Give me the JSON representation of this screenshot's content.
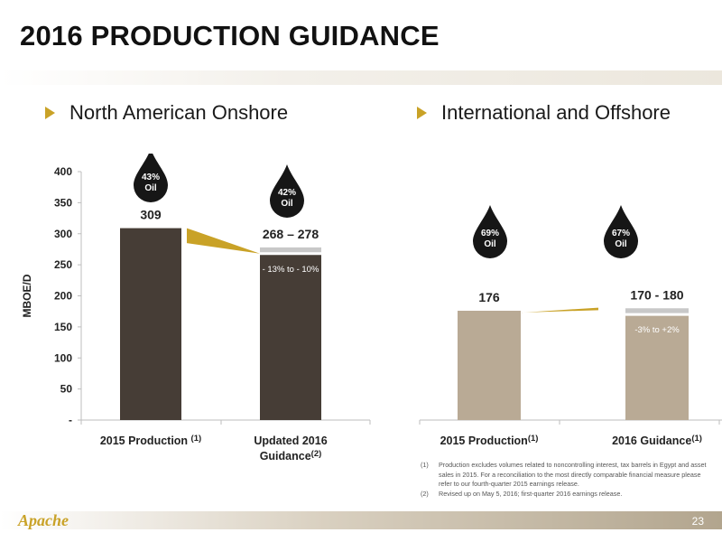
{
  "slide": {
    "title": "2016 PRODUCTION GUIDANCE",
    "page_number": "23",
    "logo_text": "Apache",
    "accent_color": "#c9a227"
  },
  "sections": {
    "left": "North American Onshore",
    "right": "International and Offshore"
  },
  "chart_data": [
    {
      "type": "bar",
      "ylabel": "MBOE/D",
      "ylim": [
        0,
        400
      ],
      "yticks": [
        "-",
        "50",
        "100",
        "150",
        "200",
        "250",
        "300",
        "350",
        "400"
      ],
      "ytick_values": [
        0,
        50,
        100,
        150,
        200,
        250,
        300,
        350,
        400
      ],
      "categories": [
        {
          "label": "2015 Production",
          "sup": "(1)"
        },
        {
          "label": "Updated 2016 Guidance",
          "sup": "(2)"
        }
      ],
      "values": [
        309,
        268
      ],
      "range_high": [
        null,
        278
      ],
      "value_labels": [
        "309",
        "268 – 278"
      ],
      "change_label": "- 13% to - 10%",
      "oil_labels": [
        "43%\nOil",
        "42%\nOil"
      ],
      "bar_color": "#463d36",
      "range_color": "#c8c8c8",
      "arrow_color": "#c9a227"
    },
    {
      "type": "bar",
      "ylim": [
        0,
        400
      ],
      "categories": [
        {
          "label": "2015 Production",
          "sup": "(1)"
        },
        {
          "label": "2016 Guidance",
          "sup": "(1)"
        }
      ],
      "values": [
        176,
        170
      ],
      "range_high": [
        null,
        180
      ],
      "value_labels": [
        "176",
        "170 - 180"
      ],
      "change_label": "-3% to +2%",
      "oil_labels": [
        "69%\nOil",
        "67%\nOil"
      ],
      "bar_color": "#b9aa95",
      "range_color": "#c8c8c8",
      "arrow_color": "#c9a227"
    }
  ],
  "footnotes": [
    {
      "num": "(1)",
      "text": "Production excludes volumes related to noncontrolling interest, tax barrels in Egypt and asset sales in 2015. For a reconciliation to the most directly comparable financial measure please refer to our fourth-quarter 2015 earnings release."
    },
    {
      "num": "(2)",
      "text": "Revised up on May 5, 2016; first-quarter 2016 earnings release."
    }
  ]
}
